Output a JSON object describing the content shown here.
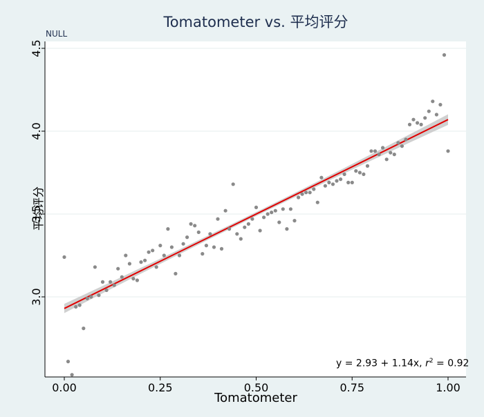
{
  "chart_data": {
    "type": "scatter",
    "title": "Tomatometer vs. 平均评分",
    "subtitle": "NULL",
    "xlabel": "Tomatometer",
    "ylabel": "平均评分",
    "xlim": [
      0,
      1
    ],
    "ylim": [
      2.45,
      4.55
    ],
    "x_ticks": [
      "0.00",
      "0.25",
      "0.50",
      "0.75",
      "1.00"
    ],
    "y_ticks": [
      "3.0",
      "3.5",
      "4.0",
      "4.5"
    ],
    "grid": true,
    "fit": {
      "type": "linear",
      "intercept": 2.93,
      "slope": 1.14,
      "r2": 0.92,
      "line_color": "#e00000",
      "ci_color": "#c8c8c8",
      "label_equation": "y = 2.93 + 1.14x,",
      "label_r2_prefix": "r",
      "label_r2_sup": "2",
      "label_r2_value": " = 0.92"
    },
    "point_color": "#8a8a8a",
    "points": [
      [
        0.0,
        3.24
      ],
      [
        0.01,
        2.61
      ],
      [
        0.02,
        2.53
      ],
      [
        0.03,
        2.94
      ],
      [
        0.04,
        2.95
      ],
      [
        0.05,
        2.81
      ],
      [
        0.06,
        2.99
      ],
      [
        0.07,
        3.0
      ],
      [
        0.08,
        3.18
      ],
      [
        0.09,
        3.01
      ],
      [
        0.1,
        3.09
      ],
      [
        0.11,
        3.04
      ],
      [
        0.12,
        3.09
      ],
      [
        0.13,
        3.07
      ],
      [
        0.14,
        3.17
      ],
      [
        0.15,
        3.12
      ],
      [
        0.16,
        3.25
      ],
      [
        0.17,
        3.2
      ],
      [
        0.18,
        3.11
      ],
      [
        0.19,
        3.1
      ],
      [
        0.2,
        3.21
      ],
      [
        0.21,
        3.22
      ],
      [
        0.22,
        3.27
      ],
      [
        0.23,
        3.28
      ],
      [
        0.24,
        3.18
      ],
      [
        0.25,
        3.31
      ],
      [
        0.26,
        3.25
      ],
      [
        0.27,
        3.41
      ],
      [
        0.28,
        3.3
      ],
      [
        0.29,
        3.14
      ],
      [
        0.3,
        3.25
      ],
      [
        0.31,
        3.32
      ],
      [
        0.32,
        3.36
      ],
      [
        0.33,
        3.44
      ],
      [
        0.34,
        3.43
      ],
      [
        0.35,
        3.39
      ],
      [
        0.36,
        3.26
      ],
      [
        0.37,
        3.31
      ],
      [
        0.38,
        3.38
      ],
      [
        0.39,
        3.3
      ],
      [
        0.4,
        3.47
      ],
      [
        0.41,
        3.29
      ],
      [
        0.42,
        3.52
      ],
      [
        0.43,
        3.41
      ],
      [
        0.44,
        3.68
      ],
      [
        0.45,
        3.38
      ],
      [
        0.46,
        3.35
      ],
      [
        0.47,
        3.42
      ],
      [
        0.48,
        3.44
      ],
      [
        0.49,
        3.47
      ],
      [
        0.5,
        3.54
      ],
      [
        0.51,
        3.4
      ],
      [
        0.52,
        3.48
      ],
      [
        0.53,
        3.5
      ],
      [
        0.54,
        3.51
      ],
      [
        0.55,
        3.52
      ],
      [
        0.56,
        3.45
      ],
      [
        0.57,
        3.53
      ],
      [
        0.58,
        3.41
      ],
      [
        0.59,
        3.53
      ],
      [
        0.6,
        3.46
      ],
      [
        0.61,
        3.6
      ],
      [
        0.62,
        3.62
      ],
      [
        0.63,
        3.63
      ],
      [
        0.64,
        3.63
      ],
      [
        0.65,
        3.65
      ],
      [
        0.66,
        3.57
      ],
      [
        0.67,
        3.72
      ],
      [
        0.68,
        3.67
      ],
      [
        0.69,
        3.69
      ],
      [
        0.7,
        3.68
      ],
      [
        0.71,
        3.7
      ],
      [
        0.72,
        3.71
      ],
      [
        0.73,
        3.74
      ],
      [
        0.74,
        3.69
      ],
      [
        0.75,
        3.69
      ],
      [
        0.76,
        3.76
      ],
      [
        0.77,
        3.75
      ],
      [
        0.78,
        3.74
      ],
      [
        0.79,
        3.79
      ],
      [
        0.8,
        3.88
      ],
      [
        0.81,
        3.88
      ],
      [
        0.82,
        3.86
      ],
      [
        0.83,
        3.9
      ],
      [
        0.84,
        3.83
      ],
      [
        0.85,
        3.87
      ],
      [
        0.86,
        3.86
      ],
      [
        0.87,
        3.93
      ],
      [
        0.88,
        3.91
      ],
      [
        0.89,
        3.95
      ],
      [
        0.9,
        4.04
      ],
      [
        0.91,
        4.07
      ],
      [
        0.92,
        4.05
      ],
      [
        0.93,
        4.04
      ],
      [
        0.94,
        4.08
      ],
      [
        0.95,
        4.12
      ],
      [
        0.96,
        4.18
      ],
      [
        0.97,
        4.1
      ],
      [
        0.98,
        4.16
      ],
      [
        0.99,
        4.46
      ],
      [
        1.0,
        3.88
      ]
    ]
  }
}
